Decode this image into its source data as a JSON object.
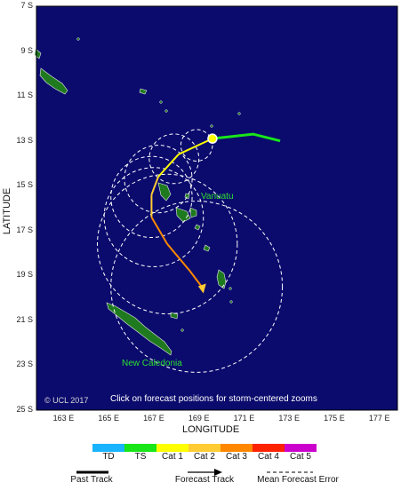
{
  "colors": {
    "ocean": "#0b0b6e",
    "land": "#1f7a1f",
    "td": "#1ab3ff",
    "ts": "#19e619",
    "cat1": "#ffff00",
    "cat2": "#ffcc33",
    "cat3": "#ff8800",
    "cat4": "#ff2200",
    "cat5": "#cc00cc",
    "label_green": "#2ee02e"
  },
  "axes": {
    "lat_labels": [
      "7 S",
      "9 S",
      "11 S",
      "13 S",
      "15 S",
      "17 S",
      "19 S",
      "21 S",
      "23 S",
      "25 S"
    ],
    "lon_labels": [
      "163 E",
      "165 E",
      "167 E",
      "169 E",
      "171 E",
      "173 E",
      "175 E",
      "177 E"
    ],
    "lat_first": 7,
    "lat_step": 2,
    "lon_first": 163,
    "lon_step": 2,
    "ylabel": "LATITUDE",
    "xlabel": "LONGITUDE"
  },
  "overlay": {
    "copyright": "© UCL 2017",
    "click_hint": "Click on forecast positions for storm-centered zooms"
  },
  "places": {
    "vanuatu": "Vanuatu",
    "new_caledonia": "New Caledonia"
  },
  "legend": {
    "categories": [
      "TD",
      "TS",
      "Cat 1",
      "Cat 2",
      "Cat 3",
      "Cat 4",
      "Cat 5"
    ],
    "past_track": "Past Track",
    "forecast_track": "Forecast Track",
    "mean_error": "Mean Forecast Error"
  },
  "tracks": {
    "past": [
      [
        172.6,
        13.0
      ],
      [
        171.4,
        12.7
      ],
      [
        169.6,
        12.9
      ]
    ],
    "forecast": [
      [
        169.6,
        12.9
      ],
      [
        168.1,
        13.6
      ],
      [
        167.2,
        14.6
      ],
      [
        166.9,
        15.4
      ],
      [
        166.9,
        16.4
      ],
      [
        167.6,
        17.6
      ],
      [
        168.6,
        18.8
      ],
      [
        169.2,
        19.6
      ]
    ],
    "current_position": [
      169.6,
      12.9
    ],
    "error_circles": [
      {
        "lon": 168.9,
        "lat": 13.2,
        "r_deg": 0.7
      },
      {
        "lon": 167.9,
        "lat": 13.8,
        "r_deg": 1.1
      },
      {
        "lon": 167.2,
        "lat": 14.7,
        "r_deg": 1.5
      },
      {
        "lon": 166.9,
        "lat": 15.5,
        "r_deg": 1.8
      },
      {
        "lon": 167.0,
        "lat": 16.4,
        "r_deg": 2.2
      },
      {
        "lon": 167.6,
        "lat": 17.6,
        "r_deg": 3.1
      },
      {
        "lon": 168.9,
        "lat": 19.5,
        "r_deg": 3.8
      }
    ]
  }
}
